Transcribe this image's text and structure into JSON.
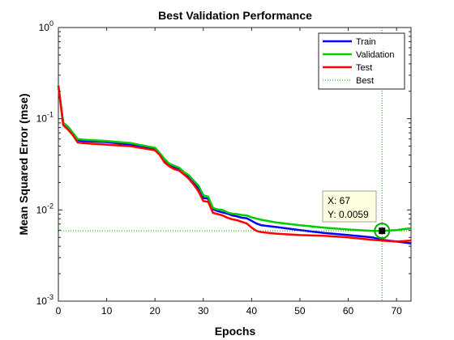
{
  "chart_data": {
    "type": "line",
    "title": "Best Validation Performance",
    "xlabel": "Epochs",
    "ylabel": "Mean Squared Error  (mse)",
    "xlim": [
      0,
      73
    ],
    "ylim": [
      0.001,
      1
    ],
    "yscale": "log",
    "grid": false,
    "legend_placement": "top-right",
    "x_ticks": [
      0,
      10,
      20,
      30,
      40,
      50,
      60,
      70
    ],
    "x_tick_labels": [
      "0",
      "10",
      "20",
      "30",
      "40",
      "50",
      "60",
      "70"
    ],
    "y_ticks": [
      0.001,
      0.01,
      0.1,
      1
    ],
    "y_tick_labels": [
      {
        "base": "10",
        "exp": "-3"
      },
      {
        "base": "10",
        "exp": "-2"
      },
      {
        "base": "10",
        "exp": "-1"
      },
      {
        "base": "10",
        "exp": "0"
      }
    ],
    "series": [
      {
        "name": "Train",
        "color": "#0000ff",
        "style": "solid",
        "x": [
          0,
          1,
          2,
          3,
          4,
          5,
          10,
          15,
          20,
          21,
          22,
          23,
          24,
          25,
          26,
          27,
          28,
          29,
          30,
          31,
          32,
          33,
          34,
          35,
          36,
          37,
          38,
          39,
          40,
          41,
          42,
          45,
          50,
          55,
          60,
          65,
          67,
          70,
          73
        ],
        "y": [
          0.23,
          0.09,
          0.08,
          0.069,
          0.058,
          0.057,
          0.0555,
          0.052,
          0.046,
          0.041,
          0.034,
          0.031,
          0.029,
          0.0275,
          0.025,
          0.023,
          0.02,
          0.017,
          0.0135,
          0.0133,
          0.0102,
          0.0097,
          0.0094,
          0.0091,
          0.0087,
          0.0085,
          0.0082,
          0.0081,
          0.0076,
          0.0071,
          0.0068,
          0.0065,
          0.006,
          0.0056,
          0.0053,
          0.005,
          0.0047,
          0.0045,
          0.0043
        ]
      },
      {
        "name": "Validation",
        "color": "#00cc00",
        "style": "solid",
        "x": [
          0,
          1,
          2,
          3,
          4,
          5,
          10,
          15,
          20,
          21,
          22,
          23,
          24,
          25,
          26,
          27,
          28,
          29,
          30,
          31,
          32,
          33,
          34,
          35,
          36,
          37,
          38,
          39,
          40,
          42,
          45,
          50,
          55,
          60,
          65,
          67,
          70,
          73
        ],
        "y": [
          0.23,
          0.09,
          0.082,
          0.07,
          0.06,
          0.059,
          0.057,
          0.054,
          0.048,
          0.042,
          0.036,
          0.032,
          0.0305,
          0.029,
          0.026,
          0.024,
          0.021,
          0.0185,
          0.0145,
          0.014,
          0.0105,
          0.0101,
          0.01,
          0.0094,
          0.0091,
          0.009,
          0.0088,
          0.0087,
          0.0083,
          0.0078,
          0.0073,
          0.0068,
          0.0064,
          0.0061,
          0.0059,
          0.0059,
          0.006,
          0.0063
        ]
      },
      {
        "name": "Test",
        "color": "#ff0000",
        "style": "solid",
        "x": [
          0,
          1,
          2,
          3,
          4,
          5,
          10,
          15,
          20,
          21,
          22,
          23,
          24,
          25,
          26,
          27,
          28,
          29,
          30,
          31,
          32,
          33,
          34,
          35,
          36,
          37,
          38,
          39,
          40,
          41,
          42,
          45,
          50,
          55,
          60,
          65,
          67,
          70,
          73
        ],
        "y": [
          0.23,
          0.085,
          0.076,
          0.066,
          0.055,
          0.054,
          0.052,
          0.05,
          0.045,
          0.04,
          0.033,
          0.03,
          0.028,
          0.027,
          0.0245,
          0.022,
          0.019,
          0.016,
          0.0125,
          0.0123,
          0.0093,
          0.009,
          0.0087,
          0.0082,
          0.0079,
          0.0077,
          0.0074,
          0.0071,
          0.0064,
          0.0059,
          0.0057,
          0.0055,
          0.0053,
          0.0052,
          0.005,
          0.0047,
          0.0046,
          0.0045,
          0.0046
        ]
      },
      {
        "name": "Best",
        "color": "#00aa00",
        "style": "dotted"
      }
    ],
    "best_point": {
      "x": 67,
      "y": 0.0059
    },
    "datatip": {
      "x_label": "X: 67",
      "y_label": "Y: 0.0059"
    }
  }
}
